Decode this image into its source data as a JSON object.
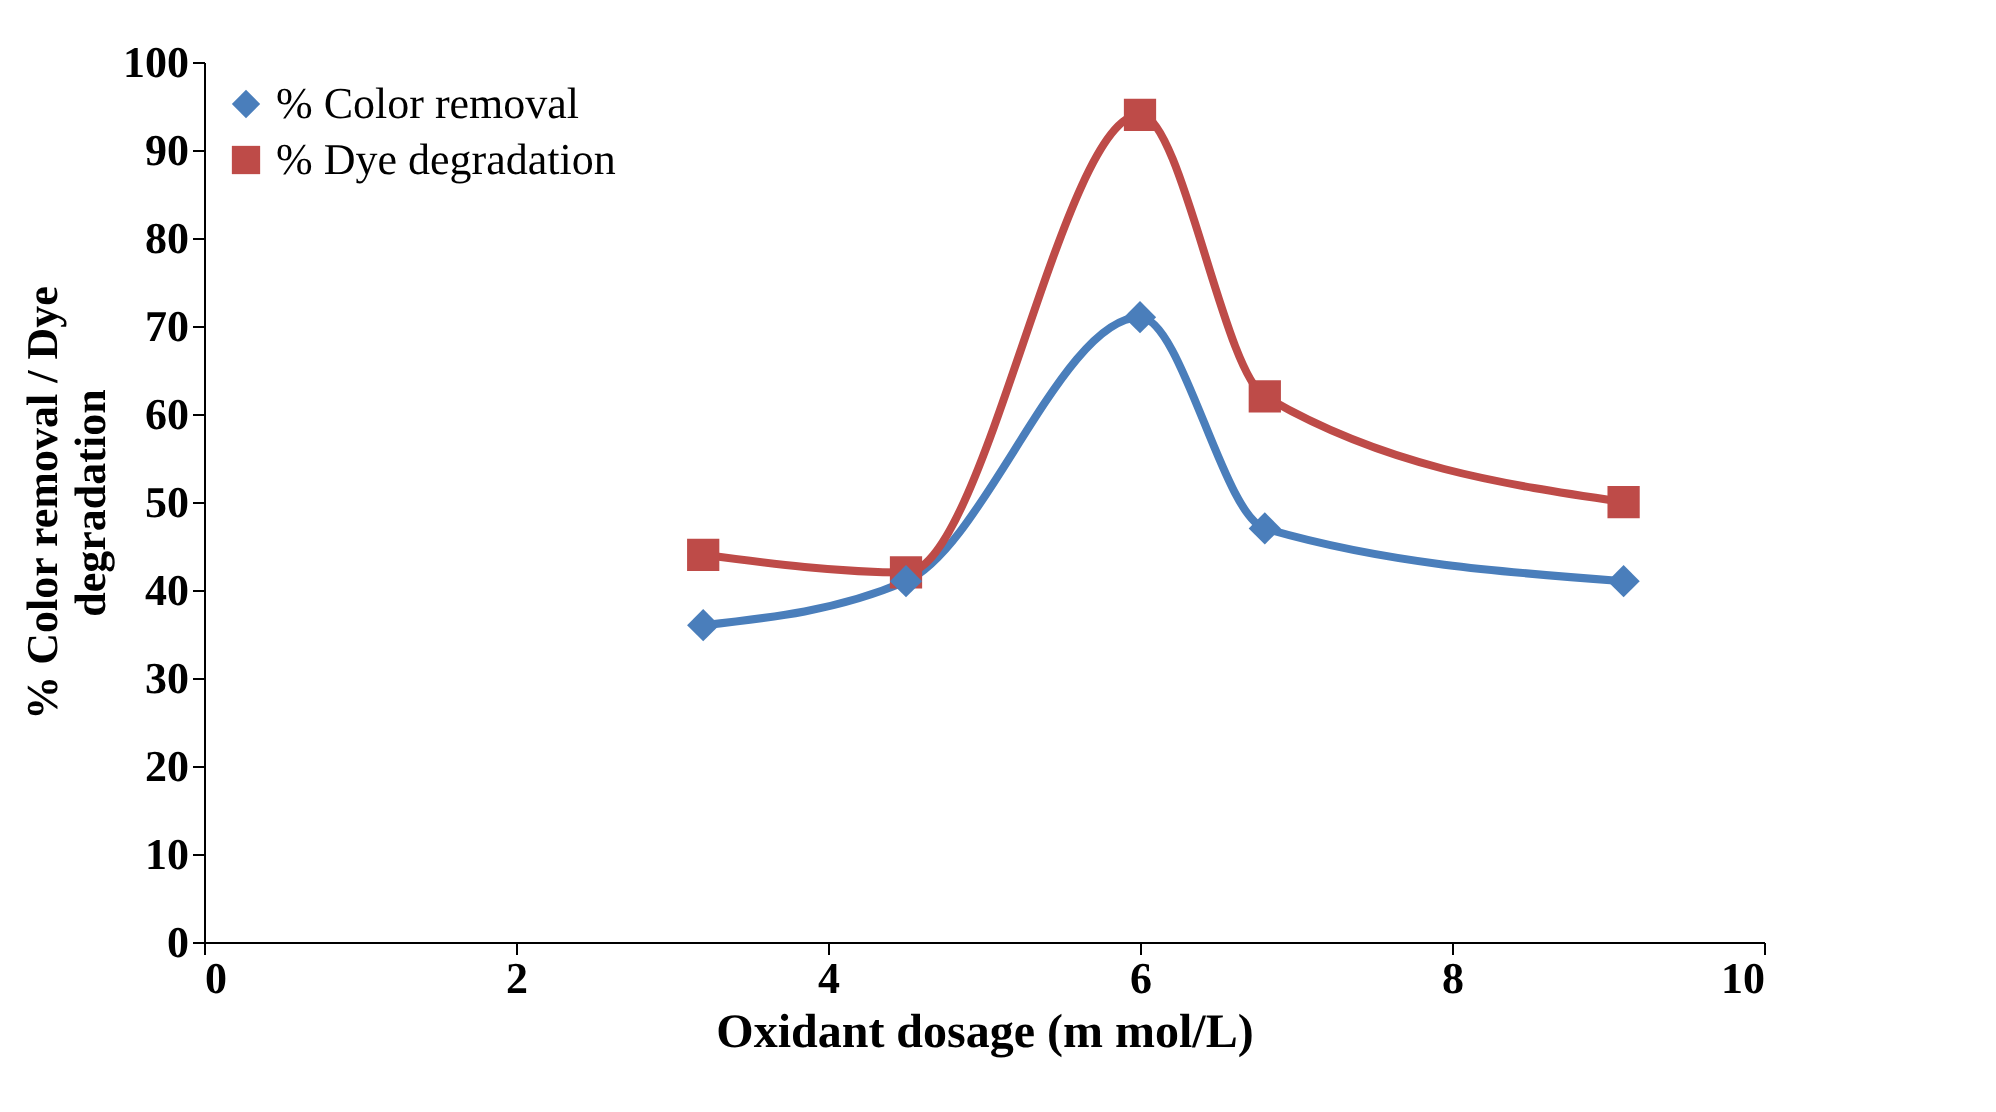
{
  "chart_data": {
    "type": "line",
    "xlabel": "Oxidant dosage (m mol/L)",
    "ylabel": "% Color removal / Dye degradation",
    "x": [
      3.2,
      4.5,
      6,
      6.8,
      9.1
    ],
    "series": [
      {
        "name": "% Color removal",
        "color": "#4a7ebb",
        "marker": "diamond",
        "values": [
          36,
          41,
          71,
          47,
          41
        ]
      },
      {
        "name": "% Dye degradation",
        "color": "#be4b48",
        "marker": "square",
        "values": [
          44,
          42,
          94,
          62,
          50
        ]
      }
    ],
    "xlim": [
      0,
      10
    ],
    "xticks": [
      0,
      2,
      4,
      6,
      8,
      10
    ],
    "ylim": [
      0,
      100
    ],
    "yticks": [
      0,
      10,
      20,
      30,
      40,
      50,
      60,
      70,
      80,
      90,
      100
    ],
    "grid": false,
    "legend": "top left",
    "line_style": "solid"
  }
}
